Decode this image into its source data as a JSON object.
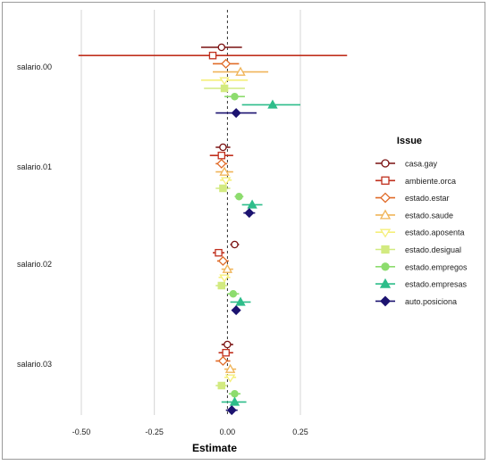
{
  "chart_data": {
    "type": "coefficient-plot",
    "xlabel": "Estimate",
    "xlim": [
      -0.55,
      0.45
    ],
    "x_ticks": [
      -0.5,
      -0.25,
      0.0,
      0.25
    ],
    "x_tick_labels": [
      "-0.50",
      "-0.25",
      "0.00",
      "0.25"
    ],
    "reference_line": 0,
    "grid": "vertical",
    "legend": {
      "title": "Issue",
      "placement": "right"
    },
    "categories": [
      "salario.00",
      "salario.01",
      "salario.02",
      "salario.03"
    ],
    "series": [
      {
        "name": "casa.gay",
        "color": "#7a1010",
        "marker": "circle-open",
        "points": [
          [
            -0.02,
            -0.09,
            0.05
          ],
          [
            -0.015,
            -0.04,
            0.01
          ],
          [
            0.025,
            0.01,
            0.04
          ],
          [
            0.0,
            -0.02,
            0.02
          ]
        ]
      },
      {
        "name": "ambiente.orca",
        "color": "#c0301e",
        "marker": "square-open",
        "points": [
          [
            -0.05,
            -0.51,
            0.41
          ],
          [
            -0.02,
            -0.06,
            0.02
          ],
          [
            -0.03,
            -0.05,
            -0.01
          ],
          [
            -0.005,
            -0.03,
            0.02
          ]
        ]
      },
      {
        "name": "estado.estar",
        "color": "#e06b28",
        "marker": "diamond-open",
        "points": [
          [
            -0.005,
            -0.05,
            0.04
          ],
          [
            -0.02,
            -0.04,
            0.0
          ],
          [
            -0.015,
            -0.035,
            0.005
          ],
          [
            -0.015,
            -0.04,
            0.01
          ]
        ]
      },
      {
        "name": "estado.saude",
        "color": "#f0b55a",
        "marker": "triangle-open",
        "points": [
          [
            0.045,
            -0.05,
            0.14
          ],
          [
            -0.01,
            -0.04,
            0.02
          ],
          [
            0.0,
            -0.02,
            0.02
          ],
          [
            0.01,
            -0.01,
            0.03
          ]
        ]
      },
      {
        "name": "estado.aposenta",
        "color": "#f5ef7a",
        "marker": "triangle-down-open",
        "points": [
          [
            -0.01,
            -0.09,
            0.07
          ],
          [
            -0.005,
            -0.025,
            0.015
          ],
          [
            -0.01,
            -0.03,
            0.01
          ],
          [
            0.01,
            -0.01,
            0.03
          ]
        ]
      },
      {
        "name": "estado.desigual",
        "color": "#d2ea80",
        "marker": "square",
        "points": [
          [
            -0.01,
            -0.08,
            0.06
          ],
          [
            -0.015,
            -0.04,
            0.01
          ],
          [
            -0.02,
            -0.04,
            0.0
          ],
          [
            -0.02,
            -0.04,
            0.0
          ]
        ]
      },
      {
        "name": "estado.empregos",
        "color": "#8ddc6e",
        "marker": "circle",
        "points": [
          [
            0.025,
            -0.01,
            0.06
          ],
          [
            0.04,
            0.025,
            0.055
          ],
          [
            0.02,
            0.0,
            0.04
          ],
          [
            0.025,
            0.005,
            0.045
          ]
        ]
      },
      {
        "name": "estado.empresas",
        "color": "#2ebd8a",
        "marker": "triangle",
        "points": [
          [
            0.155,
            0.05,
            0.25
          ],
          [
            0.085,
            0.05,
            0.12
          ],
          [
            0.045,
            0.01,
            0.08
          ],
          [
            0.025,
            -0.02,
            0.065
          ]
        ]
      },
      {
        "name": "auto.posiciona",
        "color": "#1c1370",
        "marker": "diamond",
        "points": [
          [
            0.03,
            -0.04,
            0.1
          ],
          [
            0.075,
            0.055,
            0.095
          ],
          [
            0.03,
            0.015,
            0.045
          ],
          [
            0.015,
            -0.005,
            0.035
          ]
        ]
      }
    ]
  }
}
